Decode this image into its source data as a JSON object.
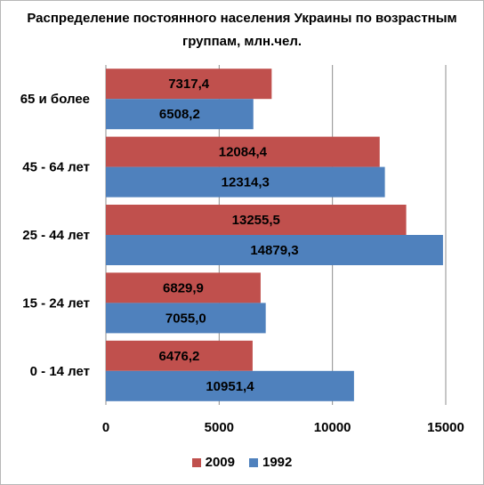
{
  "chart_data": {
    "type": "bar",
    "orientation": "horizontal",
    "title": "Распределение постоянного населения Украины по возрастным группам, млн.чел.",
    "categories": [
      "0 - 14 лет",
      "15 - 24 лет",
      "25 - 44 лет",
      "45 - 64 лет",
      "65 и более"
    ],
    "series": [
      {
        "name": "2009",
        "color": "#C0504D",
        "values": [
          6476.2,
          6829.9,
          13255.5,
          12084.4,
          7317.4
        ],
        "labels": [
          "6476,2",
          "6829,9",
          "13255,5",
          "12084,4",
          "7317,4"
        ]
      },
      {
        "name": "1992",
        "color": "#4F81BD",
        "values": [
          10951.4,
          7055.0,
          14879.3,
          12314.3,
          6508.2
        ],
        "labels": [
          "10951,4",
          "7055,0",
          "14879,3",
          "12314,3",
          "6508,2"
        ]
      }
    ],
    "xlim": [
      0,
      15000
    ],
    "xticks": [
      0,
      5000,
      10000,
      15000
    ],
    "grid": true,
    "legend_position": "bottom"
  }
}
